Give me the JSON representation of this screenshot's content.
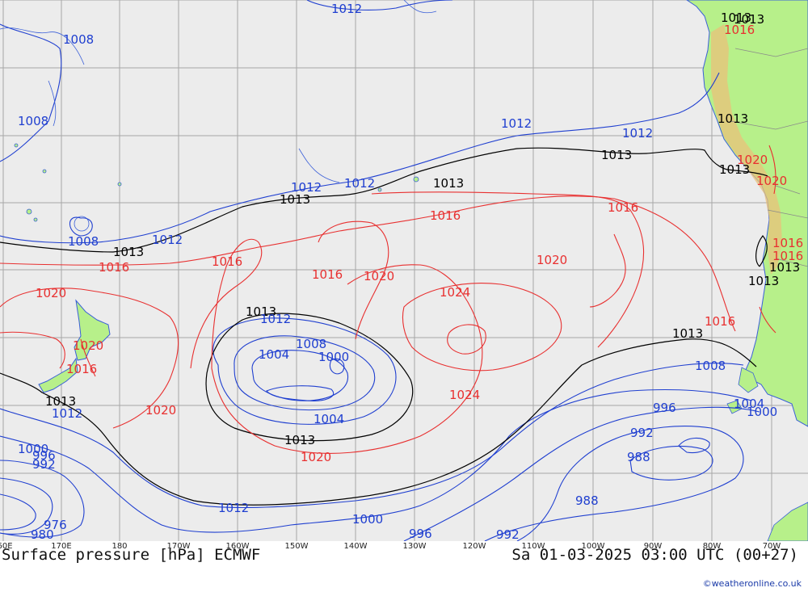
{
  "title": "Surface pressure [hPa] ECMWF",
  "valid_time": "Sa 01-03-2025 03:00 UTC (00+27)",
  "credit": "©weatheronline.co.uk",
  "longitude_labels": [
    "60E",
    "170E",
    "180",
    "170W",
    "160W",
    "150W",
    "140W",
    "130W",
    "120W",
    "110W",
    "100W",
    "90W",
    "80W",
    "70W"
  ],
  "colors": {
    "ocean": "#ececec",
    "land": "#b7f08a",
    "grid": "#a6a6a6",
    "low_isobar": "#1f3fd0",
    "high_isobar": "#e83030",
    "standard_isobar": "#000000",
    "coast": "#3a5fd8"
  },
  "isobar_labels": [
    {
      "text": "1012",
      "kind": "low"
    },
    {
      "text": "1008",
      "kind": "low"
    },
    {
      "text": "1008",
      "kind": "low"
    },
    {
      "text": "1008",
      "kind": "low"
    },
    {
      "text": "1013",
      "kind": "std"
    },
    {
      "text": "1016",
      "kind": "high"
    },
    {
      "text": "1020",
      "kind": "high"
    },
    {
      "text": "1012",
      "kind": "low"
    },
    {
      "text": "1013",
      "kind": "std"
    },
    {
      "text": "1012",
      "kind": "low"
    },
    {
      "text": "1012",
      "kind": "low"
    },
    {
      "text": "1013",
      "kind": "std"
    },
    {
      "text": "1012",
      "kind": "low"
    },
    {
      "text": "1012",
      "kind": "low"
    },
    {
      "text": "1013",
      "kind": "std"
    },
    {
      "text": "1013",
      "kind": "std"
    },
    {
      "text": "1016",
      "kind": "high"
    },
    {
      "text": "1016",
      "kind": "high"
    },
    {
      "text": "1016",
      "kind": "high"
    },
    {
      "text": "1016",
      "kind": "high"
    },
    {
      "text": "1020",
      "kind": "high"
    },
    {
      "text": "1020",
      "kind": "high"
    },
    {
      "text": "1024",
      "kind": "high"
    },
    {
      "text": "1024",
      "kind": "high"
    },
    {
      "text": "1013",
      "kind": "std"
    },
    {
      "text": "1012",
      "kind": "low"
    },
    {
      "text": "1008",
      "kind": "low"
    },
    {
      "text": "1004",
      "kind": "low"
    },
    {
      "text": "1000",
      "kind": "low"
    },
    {
      "text": "1004",
      "kind": "low"
    },
    {
      "text": "1013",
      "kind": "std"
    },
    {
      "text": "1020",
      "kind": "high"
    },
    {
      "text": "1020",
      "kind": "high"
    },
    {
      "text": "1016",
      "kind": "high"
    },
    {
      "text": "1020",
      "kind": "high"
    },
    {
      "text": "1013",
      "kind": "std"
    },
    {
      "text": "1012",
      "kind": "low"
    },
    {
      "text": "1000",
      "kind": "low"
    },
    {
      "text": "996",
      "kind": "low"
    },
    {
      "text": "992",
      "kind": "low"
    },
    {
      "text": "976",
      "kind": "low"
    },
    {
      "text": "980",
      "kind": "low"
    },
    {
      "text": "1012",
      "kind": "low"
    },
    {
      "text": "1000",
      "kind": "low"
    },
    {
      "text": "996",
      "kind": "low"
    },
    {
      "text": "992",
      "kind": "low"
    },
    {
      "text": "988",
      "kind": "low"
    },
    {
      "text": "988",
      "kind": "low"
    },
    {
      "text": "992",
      "kind": "low"
    },
    {
      "text": "996",
      "kind": "low"
    },
    {
      "text": "1000",
      "kind": "low"
    },
    {
      "text": "1004",
      "kind": "low"
    },
    {
      "text": "1008",
      "kind": "low"
    },
    {
      "text": "1013",
      "kind": "std"
    },
    {
      "text": "1016",
      "kind": "high"
    },
    {
      "text": "1013",
      "kind": "std"
    },
    {
      "text": "1013",
      "kind": "std"
    },
    {
      "text": "1013",
      "kind": "std"
    },
    {
      "text": "1013",
      "kind": "std"
    },
    {
      "text": "1013",
      "kind": "std"
    },
    {
      "text": "1016",
      "kind": "high"
    },
    {
      "text": "1020",
      "kind": "high"
    },
    {
      "text": "1020",
      "kind": "high"
    },
    {
      "text": "1016",
      "kind": "high"
    },
    {
      "text": "1016",
      "kind": "high"
    }
  ]
}
